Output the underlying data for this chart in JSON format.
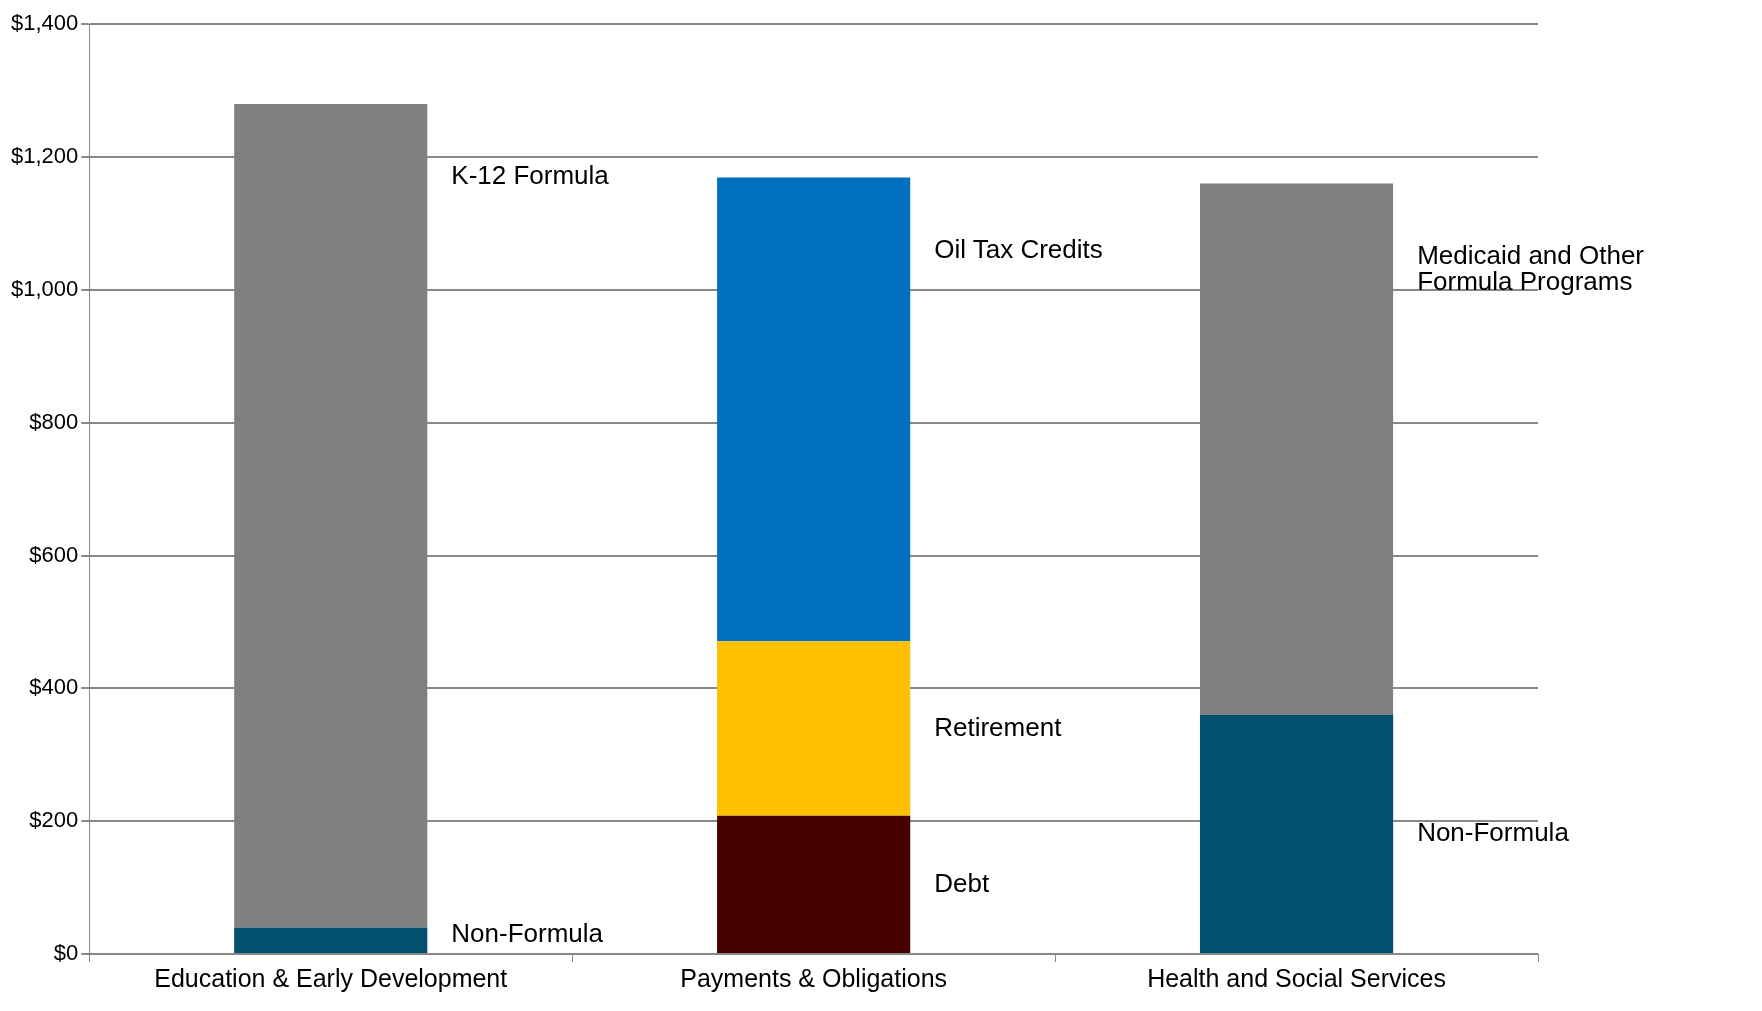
{
  "chart_data": {
    "type": "bar",
    "stacked": true,
    "categories": [
      "Education & Early Development",
      "Payments & Obligations",
      "Health and Social Services"
    ],
    "series": [
      {
        "name": "Non-Formula",
        "color": "#00506e",
        "values": [
          40,
          null,
          360
        ]
      },
      {
        "name": "Debt",
        "color": "#470000",
        "values": [
          null,
          208,
          null
        ]
      },
      {
        "name": "Retirement",
        "color": "#ffc000",
        "values": [
          null,
          263,
          null
        ]
      },
      {
        "name": "K-12 Formula",
        "color": "#808080",
        "values": [
          1240,
          null,
          null
        ]
      },
      {
        "name": "Oil Tax Credits",
        "color": "#0070c0",
        "values": [
          null,
          698,
          null
        ]
      },
      {
        "name": "Medicaid and Other Formula Programs",
        "color": "#808080",
        "values": [
          null,
          null,
          800
        ]
      }
    ],
    "ylim": [
      0,
      1400
    ],
    "yticks": [
      {
        "value": 0,
        "label": "$0"
      },
      {
        "value": 200,
        "label": "$200"
      },
      {
        "value": 400,
        "label": "$400"
      },
      {
        "value": 600,
        "label": "$600"
      },
      {
        "value": 800,
        "label": "$800"
      },
      {
        "value": 1000,
        "label": "$1,000"
      },
      {
        "value": 1200,
        "label": "$1,200"
      },
      {
        "value": 1400,
        "label": "$1,400"
      }
    ],
    "grid": "y",
    "legend": false
  }
}
